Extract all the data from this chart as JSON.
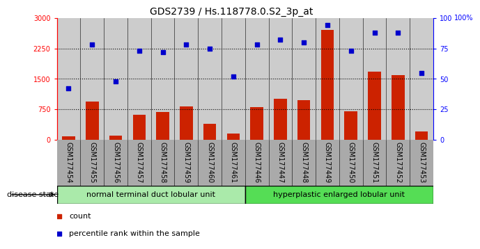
{
  "title": "GDS2739 / Hs.118778.0.S2_3p_at",
  "categories": [
    "GSM177454",
    "GSM177455",
    "GSM177456",
    "GSM177457",
    "GSM177458",
    "GSM177459",
    "GSM177460",
    "GSM177461",
    "GSM177446",
    "GSM177447",
    "GSM177448",
    "GSM177449",
    "GSM177450",
    "GSM177451",
    "GSM177452",
    "GSM177453"
  ],
  "bar_values": [
    90,
    950,
    110,
    620,
    680,
    820,
    390,
    150,
    800,
    1020,
    980,
    2700,
    700,
    1680,
    1600,
    200
  ],
  "scatter_values": [
    42,
    78,
    48,
    73,
    72,
    78,
    75,
    52,
    78,
    82,
    80,
    94,
    73,
    88,
    88,
    55
  ],
  "bar_color": "#cc2200",
  "scatter_color": "#0000cc",
  "ylim_left": [
    0,
    3000
  ],
  "ylim_right": [
    0,
    100
  ],
  "yticks_left": [
    0,
    750,
    1500,
    2250,
    3000
  ],
  "yticks_right": [
    0,
    25,
    50,
    75,
    100
  ],
  "group1_label": "normal terminal duct lobular unit",
  "group2_label": "hyperplastic enlarged lobular unit",
  "group1_count": 8,
  "group2_count": 8,
  "disease_state_label": "disease state",
  "legend_bar_label": "count",
  "legend_scatter_label": "percentile rank within the sample",
  "group1_color": "#aaeaaa",
  "group2_color": "#55dd55",
  "bar_area_color": "#cccccc",
  "label_area_color": "#aaaaaa",
  "background_color": "#ffffff",
  "grid_dotted_vals": [
    750,
    1500,
    2250
  ],
  "title_fontsize": 10,
  "tick_fontsize": 7,
  "legend_fontsize": 8
}
